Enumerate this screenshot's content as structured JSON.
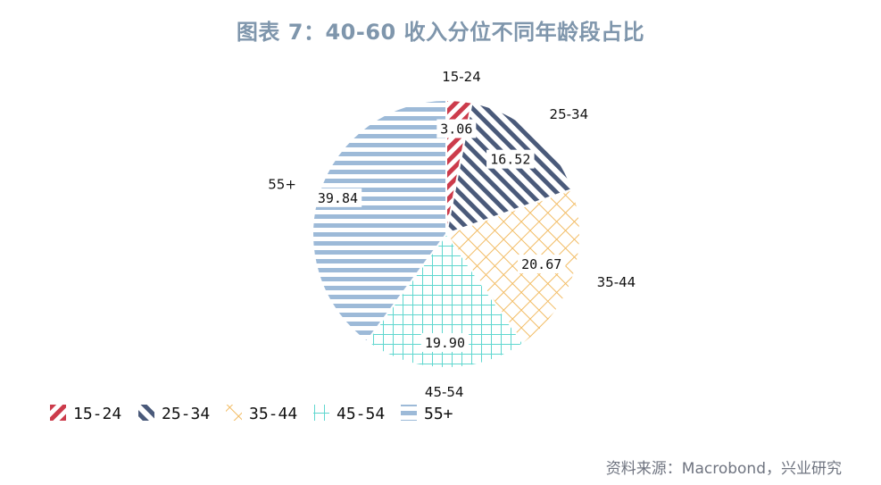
{
  "title": "图表 7：40-60 收入分位不同年龄段占比",
  "source": "资料来源：Macrobond，兴业研究",
  "chart_data": {
    "type": "pie",
    "categories": [
      "15-24",
      "25-34",
      "35-44",
      "45-54",
      "55+"
    ],
    "values": [
      3.06,
      16.52,
      20.67,
      19.9,
      39.84
    ],
    "value_labels": [
      "3.06",
      "16.52",
      "20.67",
      "19.90",
      "39.84"
    ],
    "legend": [
      "15-24",
      "25-34",
      "35-44",
      "45-54",
      "55+"
    ],
    "legend_position": "bottom-left",
    "colors": [
      "#cc3b4b",
      "#4a5a7a",
      "#f2bc64",
      "#5fd7cf",
      "#9dbad8"
    ],
    "patterns": [
      "diagonal-stripes",
      "diagonal-stripes",
      "crosshatch-diagonal",
      "grid",
      "horizontal-stripes"
    ]
  }
}
